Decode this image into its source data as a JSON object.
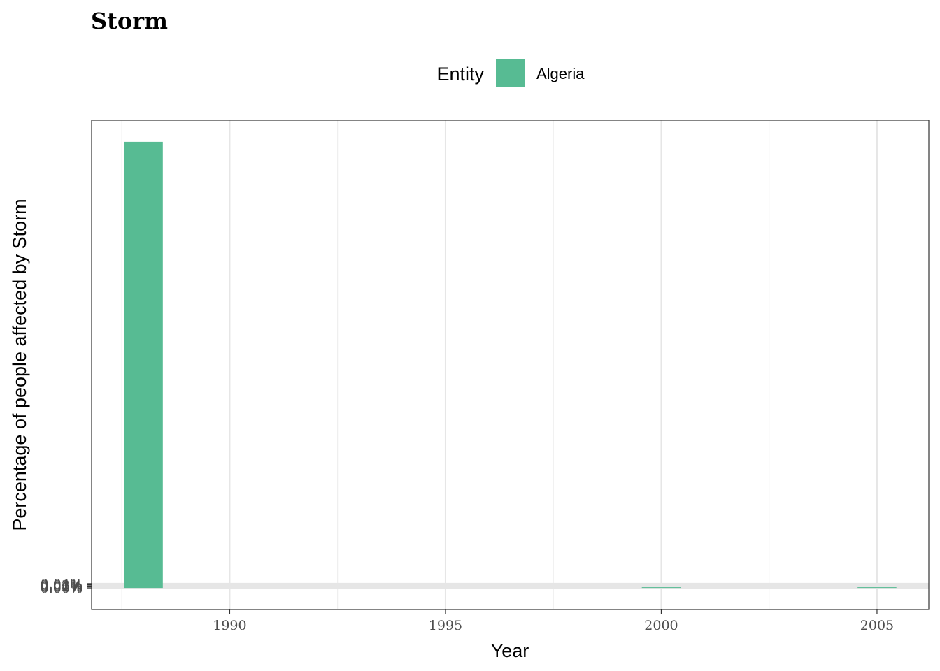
{
  "chart_data": {
    "type": "bar",
    "title": "Storm",
    "xlabel": "Year",
    "ylabel": "Percentage of people affected by Storm",
    "legend": {
      "title": "Entity",
      "placement": "top"
    },
    "series": [
      {
        "name": "Algeria",
        "color": "#57bb93",
        "x": [
          1988,
          2000,
          2005
        ],
        "values": [
          0.0413,
          0.0,
          0.0
        ]
      }
    ],
    "x_ticks": [
      "1990",
      "1995",
      "2000",
      "2005"
    ],
    "y_ticks": [
      "0.00%",
      "0.01%",
      "0.02%",
      "0.03%",
      "0.04%"
    ],
    "xlim": [
      1986.8,
      2006.2
    ],
    "ylim": [
      -0.002,
      0.0433
    ],
    "grid": true
  }
}
